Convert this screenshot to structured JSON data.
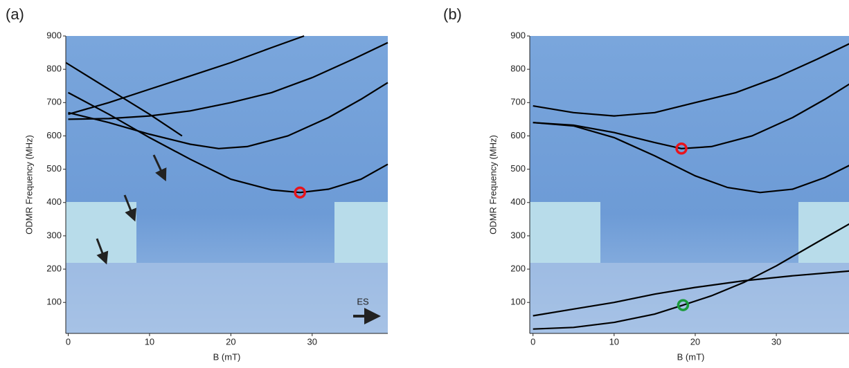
{
  "chart_data": [
    {
      "type": "line",
      "title": "(a)",
      "x_label": "B (mT)",
      "y_label": "ODMR Frequency (MHz)",
      "xlim": [
        -0.3,
        39.3
      ],
      "ylim": [
        7,
        900
      ],
      "xticks": [
        0,
        10,
        20,
        30
      ],
      "yticks": [
        100,
        200,
        300,
        400,
        500,
        600,
        700,
        800,
        900
      ],
      "series": [
        {
          "color": "#000000",
          "x": [
            0,
            5,
            10,
            15,
            20,
            25,
            28.5,
            32,
            36,
            39.3
          ],
          "values": [
            730,
            665,
            595,
            530,
            470,
            438,
            430,
            440,
            470,
            515
          ]
        },
        {
          "color": "#000000",
          "x": [
            0,
            5,
            10,
            15,
            18.5,
            22,
            27,
            32,
            36,
            39.3
          ],
          "values": [
            670,
            640,
            605,
            575,
            562,
            568,
            600,
            655,
            710,
            760
          ]
        },
        {
          "color": "#000000",
          "x": [
            0,
            5,
            10,
            15,
            20,
            25,
            30,
            35,
            39.3
          ],
          "values": [
            650,
            652,
            660,
            675,
            700,
            730,
            775,
            830,
            880
          ]
        },
        {
          "color": "#000000",
          "x": [
            0,
            5,
            10,
            15,
            20,
            25,
            29
          ],
          "values": [
            665,
            700,
            740,
            780,
            820,
            865,
            900
          ]
        },
        {
          "color": "#000000",
          "x": [
            -0.3,
            5,
            10,
            14
          ],
          "values": [
            820,
            740,
            665,
            600
          ]
        }
      ],
      "markers": [
        {
          "x": 28.5,
          "y": 430,
          "color": "#e8141c"
        }
      ],
      "annotation": "ES"
    },
    {
      "type": "line",
      "title": "(b)",
      "x_label": "B (mT)",
      "y_label": "ODMR Frequency (MHz)",
      "xlim": [
        -0.4,
        39.3
      ],
      "ylim": [
        7,
        900
      ],
      "xticks": [
        0,
        10,
        20,
        30
      ],
      "yticks": [
        100,
        200,
        300,
        400,
        500,
        600,
        700,
        800,
        900
      ],
      "series": [
        {
          "color": "#000000",
          "x": [
            0,
            5,
            10,
            15,
            18.3,
            22,
            27,
            32,
            36,
            39.3
          ],
          "values": [
            640,
            632,
            610,
            580,
            562,
            568,
            600,
            655,
            710,
            760
          ]
        },
        {
          "color": "#000000",
          "x": [
            0,
            5,
            10,
            15,
            20,
            24,
            28,
            32,
            36,
            39.3
          ],
          "values": [
            640,
            630,
            595,
            540,
            480,
            445,
            430,
            440,
            475,
            515
          ]
        },
        {
          "color": "#000000",
          "x": [
            0,
            5,
            10,
            15,
            20,
            25,
            30,
            35,
            39.3
          ],
          "values": [
            690,
            670,
            660,
            670,
            700,
            730,
            775,
            830,
            880
          ]
        },
        {
          "color": "#000000",
          "x": [
            0,
            5,
            10,
            15,
            18.5,
            22,
            26,
            30,
            35,
            39.3
          ],
          "values": [
            20,
            25,
            40,
            65,
            92,
            120,
            160,
            210,
            280,
            340
          ]
        },
        {
          "color": "#000000",
          "x": [
            0,
            5,
            10,
            15,
            20,
            26,
            32,
            39.3
          ],
          "values": [
            60,
            80,
            100,
            125,
            145,
            165,
            180,
            195
          ]
        }
      ],
      "markers": [
        {
          "x": 18.3,
          "y": 562,
          "color": "#e8141c"
        },
        {
          "x": 18.5,
          "y": 92,
          "color": "#1a9a3a"
        }
      ]
    }
  ]
}
